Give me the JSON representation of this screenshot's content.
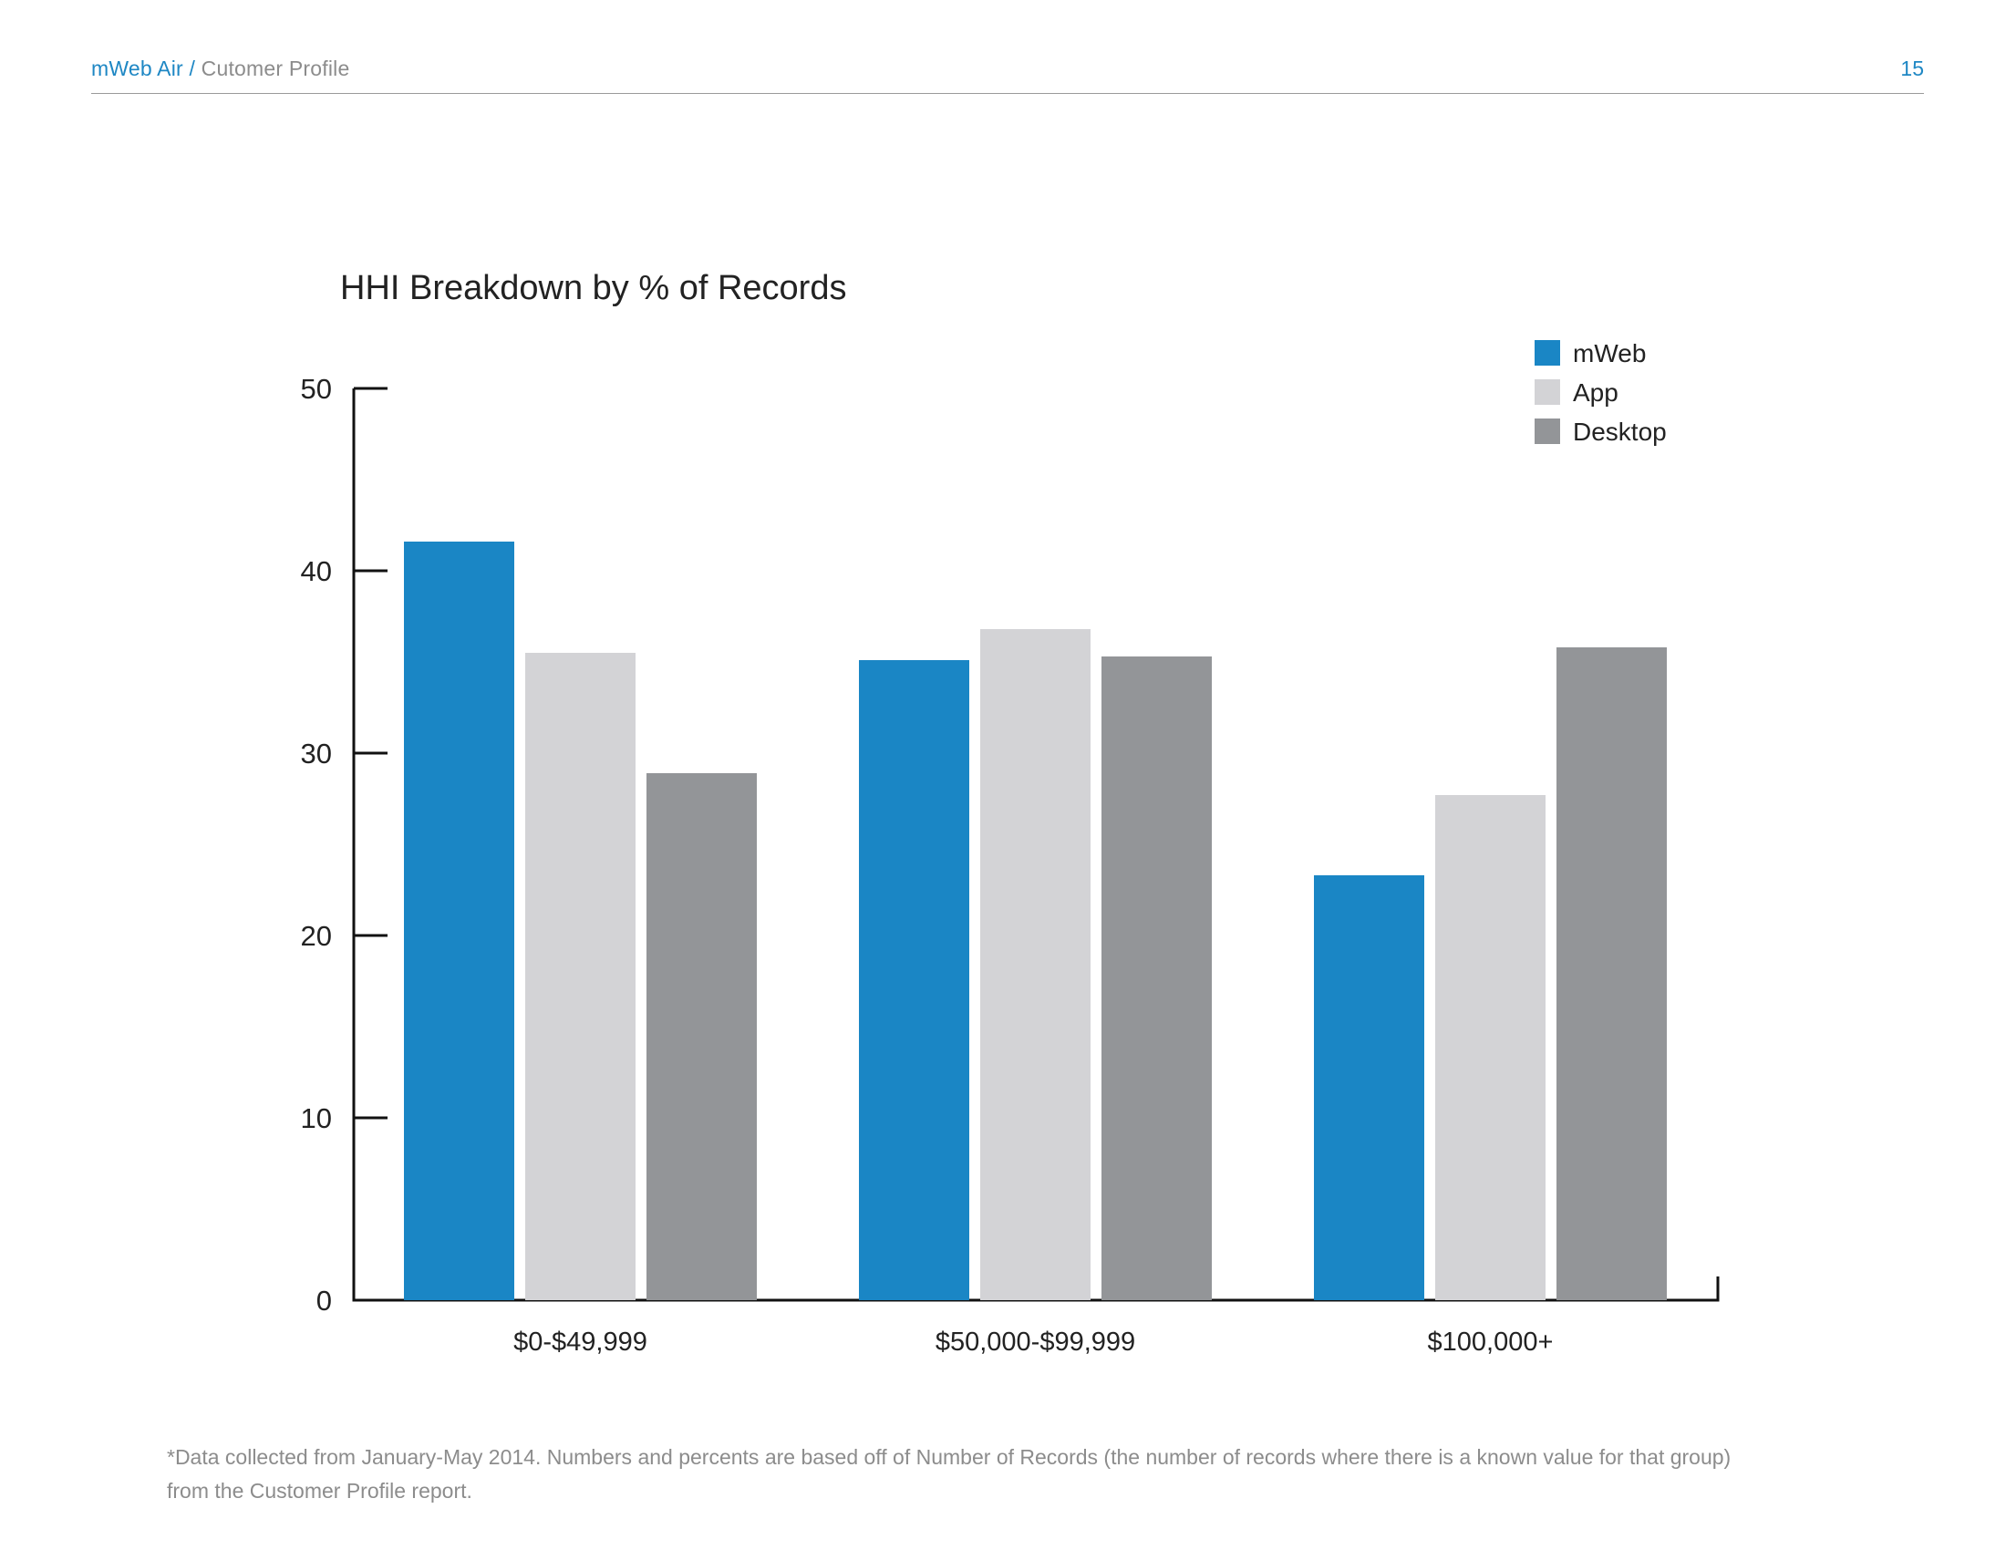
{
  "header": {
    "app_name": "mWeb Air",
    "separator": "/",
    "page_name": "Cutomer Profile",
    "page_number": "15"
  },
  "colors": {
    "accent": "#1e87c4",
    "axis": "#111111"
  },
  "chart_data": {
    "type": "bar",
    "title": "HHI Breakdown by % of Records",
    "xlabel": "",
    "ylabel": "",
    "ylim": [
      0,
      50
    ],
    "yticks": [
      0,
      10,
      20,
      30,
      40,
      50
    ],
    "categories": [
      "$0-$49,999",
      "$50,000-$99,999",
      "$100,000+"
    ],
    "series": [
      {
        "name": "mWeb",
        "color": "#1a86c5",
        "values": [
          41.6,
          35.1,
          23.3
        ]
      },
      {
        "name": "App",
        "color": "#d3d3d6",
        "values": [
          35.5,
          36.8,
          27.7
        ]
      },
      {
        "name": "Desktop",
        "color": "#939598",
        "values": [
          28.9,
          35.3,
          35.8
        ]
      }
    ],
    "grid": false,
    "legend_position": "top-right"
  },
  "footnote": {
    "line1": "*Data collected from January-May 2014. Numbers and percents are based off of Number of Records (the number of records where there is a known value for that group)",
    "line2": "from the Customer Profile report."
  }
}
